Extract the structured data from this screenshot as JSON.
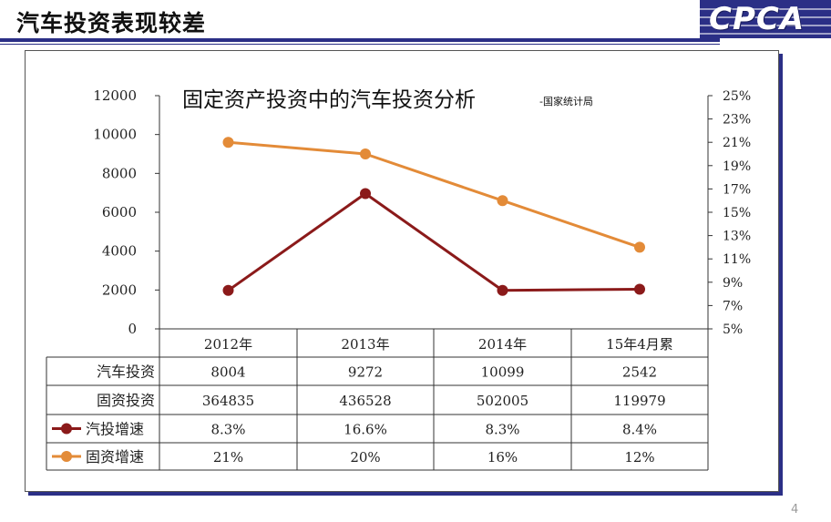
{
  "slide": {
    "title": "汽车投资表现较差",
    "logo_text": "CPCA",
    "page_number": "4"
  },
  "colors": {
    "accent_navy": "#2b2f86",
    "auto_series": "#8b1a1a",
    "fixed_series": "#e38b38"
  },
  "chart_data": {
    "type": "line",
    "title": "固定资产投资中的汽车投资分析",
    "subtitle": "-国家统计局",
    "categories": [
      "2012年",
      "2013年",
      "2014年",
      "15年4月累"
    ],
    "y_left": {
      "ylim": [
        0,
        12000
      ],
      "ticks": [
        "0",
        "2000",
        "4000",
        "6000",
        "8000",
        "10000",
        "12000"
      ]
    },
    "y_right": {
      "ylim": [
        5,
        25
      ],
      "ticks": [
        "5%",
        "7%",
        "9%",
        "11%",
        "13%",
        "15%",
        "17%",
        "19%",
        "21%",
        "23%",
        "25%"
      ]
    },
    "series": [
      {
        "name": "汽投增速",
        "axis": "right",
        "color": "#8b1a1a",
        "values": [
          8.3,
          16.6,
          8.3,
          8.4
        ]
      },
      {
        "name": "固资增速",
        "axis": "right",
        "color": "#e38b38",
        "values": [
          21,
          20,
          16,
          12
        ]
      }
    ],
    "table": {
      "rows": [
        {
          "label": "汽车投资",
          "values": [
            "8004",
            "9272",
            "10099",
            "2542"
          ]
        },
        {
          "label": "固资投资",
          "values": [
            "364835",
            "436528",
            "502005",
            "119979"
          ]
        },
        {
          "label": "汽投增速",
          "legend_color": "#8b1a1a",
          "values": [
            "8.3%",
            "16.6%",
            "8.3%",
            "8.4%"
          ]
        },
        {
          "label": "固资增速",
          "legend_color": "#e38b38",
          "values": [
            "21%",
            "20%",
            "16%",
            "12%"
          ]
        }
      ]
    }
  }
}
